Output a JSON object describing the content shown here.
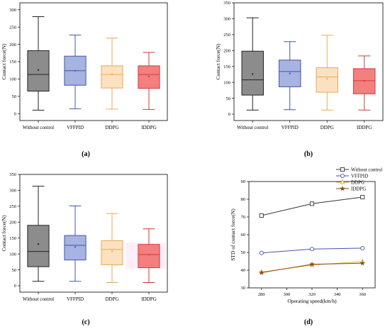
{
  "chart_data": [
    {
      "type": "box",
      "panel_label": "(a)",
      "ylabel": "Contact force(N)",
      "ylim": [
        -20,
        320
      ],
      "yticks": [
        0,
        50,
        100,
        150,
        200,
        250,
        300
      ],
      "categories": [
        "Without control",
        "VFFPID",
        "DDPG",
        "IDDPG"
      ],
      "boxes": [
        {
          "min": 10,
          "q1": 65,
          "median": 113,
          "q3": 182,
          "max": 280,
          "mean": 126
        },
        {
          "min": 14,
          "q1": 82,
          "median": 124,
          "q3": 166,
          "max": 227,
          "mean": 124
        },
        {
          "min": 13,
          "q1": 74,
          "median": 113,
          "q3": 138,
          "max": 218,
          "mean": 114
        },
        {
          "min": 12,
          "q1": 73,
          "median": 113,
          "q3": 138,
          "max": 177,
          "mean": 107
        }
      ]
    },
    {
      "type": "box",
      "panel_label": "(b)",
      "ylabel": "Contact force(N)",
      "ylim": [
        -20,
        350
      ],
      "yticks": [
        0,
        50,
        100,
        150,
        200,
        250,
        300,
        350
      ],
      "categories": [
        "Without control",
        "VFFPID",
        "DDPG",
        "IDDPG"
      ],
      "boxes": [
        {
          "min": 13,
          "q1": 60,
          "median": 108,
          "q3": 198,
          "max": 303,
          "mean": 126
        },
        {
          "min": 14,
          "q1": 86,
          "median": 134,
          "q3": 170,
          "max": 228,
          "mean": 128
        },
        {
          "min": 13,
          "q1": 69,
          "median": 117,
          "q3": 146,
          "max": 248,
          "mean": 111
        },
        {
          "min": 13,
          "q1": 64,
          "median": 105,
          "q3": 143,
          "max": 183,
          "mean": 105
        }
      ]
    },
    {
      "type": "box",
      "panel_label": "(c)",
      "ylabel": "Contact force(N)",
      "ylim": [
        -20,
        350
      ],
      "yticks": [
        0,
        50,
        100,
        150,
        200,
        250,
        300,
        350
      ],
      "categories": [
        "Without control",
        "VFFPID",
        "DDPG",
        "IDDPG"
      ],
      "boxes": [
        {
          "min": 14,
          "q1": 60,
          "median": 108,
          "q3": 190,
          "max": 313,
          "mean": 131
        },
        {
          "min": 14,
          "q1": 81,
          "median": 127,
          "q3": 158,
          "max": 251,
          "mean": 122
        },
        {
          "min": 10,
          "q1": 66,
          "median": 114,
          "q3": 142,
          "max": 227,
          "mean": 108
        },
        {
          "min": 10,
          "q1": 57,
          "median": 98,
          "q3": 130,
          "max": 179,
          "mean": 98
        }
      ]
    },
    {
      "type": "line",
      "panel_label": "(d)",
      "xlabel": "Operating speed(km/h)",
      "ylabel": "STD of contact force(N)",
      "x": [
        280,
        320,
        360
      ],
      "xlim": [
        270,
        370
      ],
      "xticks": [
        280,
        300,
        320,
        340,
        360
      ],
      "ylim": [
        30,
        90
      ],
      "yticks": [
        30,
        40,
        50,
        60,
        70,
        80,
        90
      ],
      "legend_position": "top-right",
      "series": [
        {
          "name": "Without control",
          "values": [
            70.8,
            77.5,
            81.2
          ],
          "color": "#333333",
          "marker": "square"
        },
        {
          "name": "VFFPID",
          "values": [
            49.7,
            51.9,
            52.4
          ],
          "color": "#4a4fb8",
          "marker": "circle"
        },
        {
          "name": "DDPG",
          "values": [
            38.9,
            42.9,
            44.8
          ],
          "color": "#e0b030",
          "marker": "triangle"
        },
        {
          "name": "IDDPG",
          "values": [
            38.6,
            43.3,
            43.9
          ],
          "color": "#8a4a1f",
          "marker": "star"
        }
      ]
    }
  ],
  "box_styles": [
    {
      "fill": "#8c8c8c",
      "stroke": "#222222"
    },
    {
      "fill": "#a7b3e0",
      "stroke": "#4356a8"
    },
    {
      "fill": "#fbe1c0",
      "stroke": "#e8a85a"
    },
    {
      "fill": "#f37f7f",
      "stroke": "#d23a3a"
    }
  ]
}
